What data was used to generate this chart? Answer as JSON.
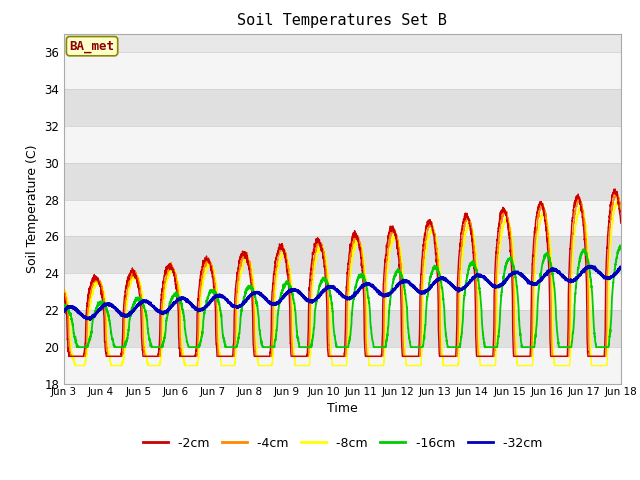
{
  "title": "Soil Temperatures Set B",
  "xlabel": "Time",
  "ylabel": "Soil Temperature (C)",
  "ylim": [
    18,
    37
  ],
  "yticks": [
    18,
    20,
    22,
    24,
    26,
    28,
    30,
    32,
    34,
    36
  ],
  "xlim": [
    0,
    360
  ],
  "annotation": "BA_met",
  "colors": {
    "-2cm": "#cc0000",
    "-4cm": "#ff8800",
    "-8cm": "#ffff00",
    "-16cm": "#00cc00",
    "-32cm": "#0000bb"
  },
  "xtick_labels": [
    "Jun 3",
    "Jun 4",
    "Jun 5",
    "Jun 6",
    "Jun 7",
    "Jun 8",
    "Jun 9",
    "Jun 10",
    "Jun 11",
    "Jun 12",
    "Jun 13",
    "Jun 14",
    "Jun 15",
    "Jun 16",
    "Jun 17",
    "Jun 18"
  ],
  "xtick_positions": [
    0,
    24,
    48,
    72,
    96,
    120,
    144,
    168,
    192,
    216,
    240,
    264,
    288,
    312,
    336,
    360
  ]
}
